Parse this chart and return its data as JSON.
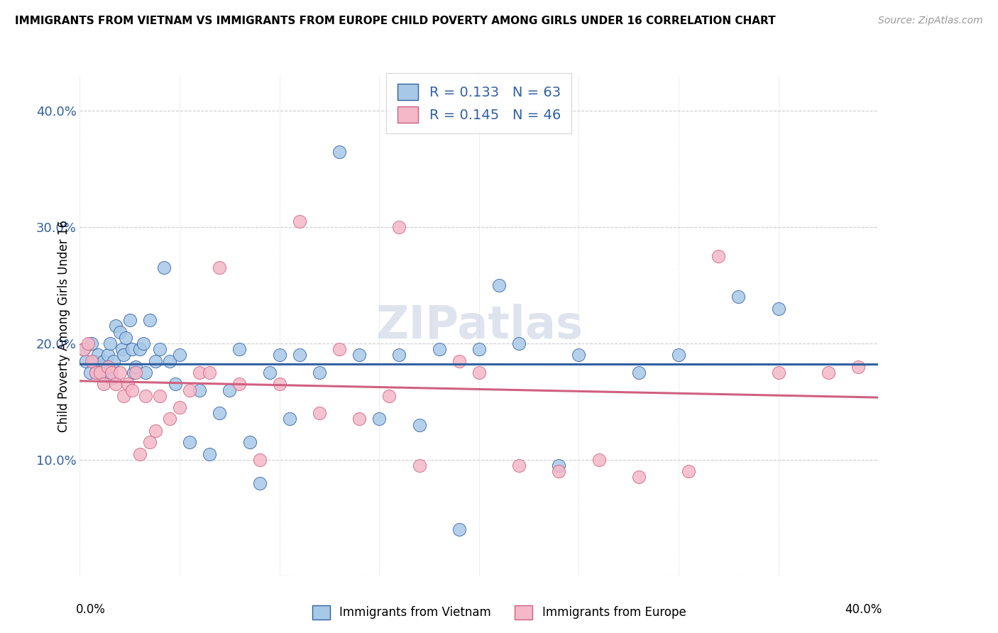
{
  "title": "IMMIGRANTS FROM VIETNAM VS IMMIGRANTS FROM EUROPE CHILD POVERTY AMONG GIRLS UNDER 16 CORRELATION CHART",
  "source": "Source: ZipAtlas.com",
  "ylabel": "Child Poverty Among Girls Under 16",
  "xlim": [
    0.0,
    0.4
  ],
  "ylim": [
    0.0,
    0.43
  ],
  "yticks": [
    0.0,
    0.1,
    0.2,
    0.3,
    0.4
  ],
  "ytick_labels": [
    "",
    "10.0%",
    "20.0%",
    "30.0%",
    "40.0%"
  ],
  "xticks": [
    0.0,
    0.05,
    0.1,
    0.15,
    0.2,
    0.25,
    0.3,
    0.35,
    0.4
  ],
  "color_blue": "#a8c8e8",
  "color_pink": "#f4b8c8",
  "line_blue": "#3060a0",
  "line_pink": "#d06080",
  "watermark": "ZIPatlas",
  "vietnam_x": [
    0.002,
    0.003,
    0.005,
    0.006,
    0.007,
    0.008,
    0.009,
    0.01,
    0.011,
    0.012,
    0.013,
    0.014,
    0.015,
    0.016,
    0.017,
    0.018,
    0.02,
    0.021,
    0.022,
    0.023,
    0.025,
    0.026,
    0.027,
    0.028,
    0.03,
    0.032,
    0.033,
    0.035,
    0.038,
    0.04,
    0.042,
    0.045,
    0.048,
    0.05,
    0.055,
    0.06,
    0.065,
    0.07,
    0.075,
    0.08,
    0.085,
    0.09,
    0.095,
    0.1,
    0.105,
    0.11,
    0.12,
    0.13,
    0.14,
    0.15,
    0.16,
    0.17,
    0.18,
    0.19,
    0.2,
    0.21,
    0.22,
    0.24,
    0.25,
    0.28,
    0.3,
    0.33,
    0.35
  ],
  "vietnam_y": [
    0.195,
    0.185,
    0.175,
    0.2,
    0.185,
    0.175,
    0.19,
    0.18,
    0.175,
    0.185,
    0.175,
    0.19,
    0.2,
    0.17,
    0.185,
    0.215,
    0.21,
    0.195,
    0.19,
    0.205,
    0.22,
    0.195,
    0.175,
    0.18,
    0.195,
    0.2,
    0.175,
    0.22,
    0.185,
    0.195,
    0.265,
    0.185,
    0.165,
    0.19,
    0.115,
    0.16,
    0.105,
    0.14,
    0.16,
    0.195,
    0.115,
    0.08,
    0.175,
    0.19,
    0.135,
    0.19,
    0.175,
    0.365,
    0.19,
    0.135,
    0.19,
    0.13,
    0.195,
    0.04,
    0.195,
    0.25,
    0.2,
    0.095,
    0.19,
    0.175,
    0.19,
    0.24,
    0.23
  ],
  "europe_x": [
    0.002,
    0.004,
    0.006,
    0.008,
    0.01,
    0.012,
    0.014,
    0.016,
    0.018,
    0.02,
    0.022,
    0.024,
    0.026,
    0.028,
    0.03,
    0.033,
    0.035,
    0.038,
    0.04,
    0.045,
    0.05,
    0.055,
    0.06,
    0.065,
    0.07,
    0.08,
    0.09,
    0.1,
    0.11,
    0.12,
    0.13,
    0.14,
    0.155,
    0.16,
    0.17,
    0.19,
    0.2,
    0.22,
    0.24,
    0.26,
    0.28,
    0.305,
    0.32,
    0.35,
    0.375,
    0.39
  ],
  "europe_y": [
    0.195,
    0.2,
    0.185,
    0.175,
    0.175,
    0.165,
    0.18,
    0.175,
    0.165,
    0.175,
    0.155,
    0.165,
    0.16,
    0.175,
    0.105,
    0.155,
    0.115,
    0.125,
    0.155,
    0.135,
    0.145,
    0.16,
    0.175,
    0.175,
    0.265,
    0.165,
    0.1,
    0.165,
    0.305,
    0.14,
    0.195,
    0.135,
    0.155,
    0.3,
    0.095,
    0.185,
    0.175,
    0.095,
    0.09,
    0.1,
    0.085,
    0.09,
    0.275,
    0.175,
    0.175,
    0.18
  ]
}
